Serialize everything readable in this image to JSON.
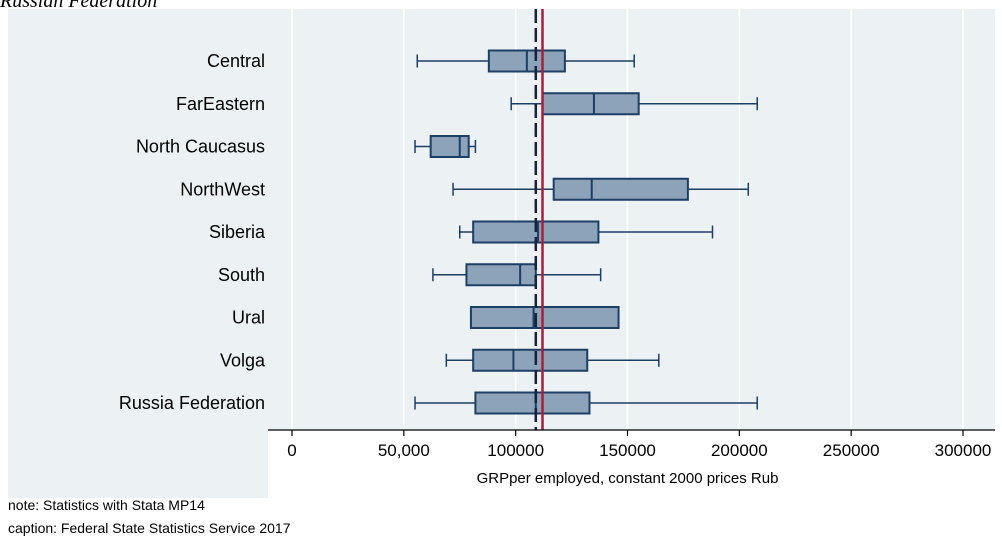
{
  "header": {
    "title": "Russian Federation"
  },
  "chart_data": {
    "type": "box",
    "categories": [
      "Central",
      "FarEastern",
      "North Caucasus",
      "NorthWest",
      "Siberia",
      "South",
      "Ural",
      "Volga",
      "Russia Federation"
    ],
    "series": [
      {
        "category": "Central",
        "min": 56000,
        "q1": 88000,
        "median": 105000,
        "q3": 122000,
        "max": 153000
      },
      {
        "category": "FarEastern",
        "min": 98000,
        "q1": 112000,
        "median": 135000,
        "q3": 155000,
        "max": 208000
      },
      {
        "category": "North Caucasus",
        "min": 55000,
        "q1": 62000,
        "median": 75000,
        "q3": 79000,
        "max": 82000
      },
      {
        "category": "NorthWest",
        "min": 72000,
        "q1": 117000,
        "median": 134000,
        "q3": 177000,
        "max": 204000
      },
      {
        "category": "Siberia",
        "min": 75000,
        "q1": 81000,
        "median": 110000,
        "q3": 137000,
        "max": 188000
      },
      {
        "category": "South",
        "min": 63000,
        "q1": 78000,
        "median": 102000,
        "q3": 109000,
        "max": 138000
      },
      {
        "category": "Ural",
        "min": 80000,
        "q1": 80000,
        "median": 108000,
        "q3": 146000,
        "max": 146000
      },
      {
        "category": "Volga",
        "min": 69000,
        "q1": 81000,
        "median": 99000,
        "q3": 132000,
        "max": 164000
      },
      {
        "category": "Russia Federation",
        "min": 55000,
        "q1": 82000,
        "median": 109000,
        "q3": 133000,
        "max": 208000
      }
    ],
    "reference_lines": [
      {
        "style": "dashed",
        "color": "#1a2238",
        "value": 109000
      },
      {
        "style": "solid",
        "color": "#a81f3d",
        "value": 112000
      }
    ],
    "xlim": [
      0,
      300000
    ],
    "x_ticks": [
      0,
      50000,
      100000,
      150000,
      200000,
      250000,
      300000
    ],
    "x_tick_labels": [
      "0",
      "50,000",
      "100000",
      "150000",
      "200000",
      "250000",
      "300000"
    ],
    "xlabel": "GRPper employed, constant 2000 prices Rub",
    "grid": true,
    "colors": {
      "box_fill": "#8ca3b9",
      "box_stroke": "#1c3f66",
      "grid": "#ffffff",
      "panel_bg": "#ecf2f4"
    }
  },
  "footer": {
    "note": "note: Statistics with Stata MP14",
    "caption": "caption: Federal State Statistics Service 2017"
  }
}
